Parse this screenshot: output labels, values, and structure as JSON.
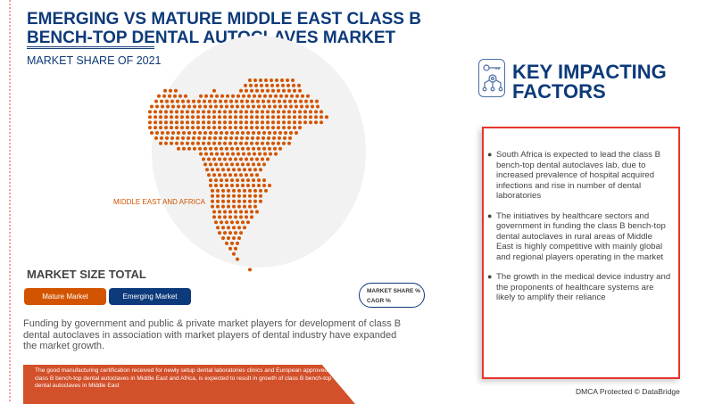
{
  "header": {
    "title": "EMERGING VS MATURE MIDDLE EAST CLASS B BENCH-TOP DENTAL AUTOCLAVES MARKET",
    "subtitle": "MARKET SHARE OF 2021"
  },
  "map": {
    "region_label": "MIDDLE EAST AND AFRICA",
    "dot_color": "#d35400"
  },
  "market_size": {
    "title": "MARKET SIZE TOTAL",
    "mature_label": "Mature Market",
    "emerging_label": "Emerging Market",
    "legend_line1": "MARKET SHARE %",
    "legend_line2": "CAGR %"
  },
  "funding_text": "Funding by government and public & private market players for development of class B dental autoclaves in association with market players of dental industry have expanded the market growth.",
  "banner_text": "The good manufacturing certification received for newly setup dental laboratories clinics and European approved (EU) class B bench-top dental autoclaves in Middle East and Africa, is expected to result in growth of class B bench-top dental autoclaves in Middle East",
  "key_factors": {
    "title_line1": "KEY IMPACTING",
    "title_line2": "FACTORS",
    "icon": "key-gear-network-icon",
    "items": [
      "South Africa is expected to lead the class B bench-top dental autoclaves lab, due to increased prevalence of hospital acquired infections and rise in number of dental laboratories",
      "The initiatives by healthcare sectors and government in funding the class B bench-top dental autoclaves in rural areas of Middle East is highly competitive with mainly global and regional players operating in the market",
      "The growth in the medical device industry and the proponents of healthcare systems are likely to amplify their reliance"
    ]
  },
  "footer": {
    "dmca": "DMCA Protected © DataBridge"
  },
  "colors": {
    "navy": "#0d3a7a",
    "orange": "#d35400",
    "red": "#e8352c"
  }
}
